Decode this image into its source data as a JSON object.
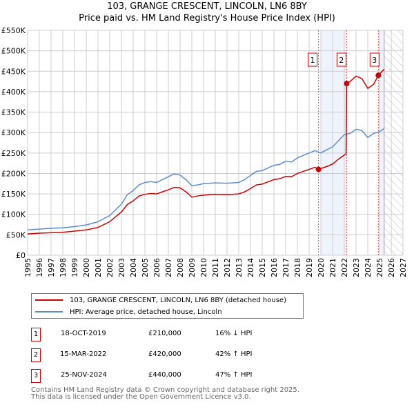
{
  "title": "103, GRANGE CRESCENT, LINCOLN, LN6 8BY",
  "subtitle": "Price paid vs. HM Land Registry's House Price Index (HPI)",
  "chart_data": {
    "type": "line",
    "title": "103, GRANGE CRESCENT, LINCOLN, LN6 8BY",
    "subtitle": "Price paid vs. HM Land Registry's House Price Index (HPI)",
    "xlim": [
      1995,
      2027
    ],
    "ylim": [
      0,
      550000
    ],
    "x_ticks": [
      "1995",
      "1996",
      "1997",
      "1998",
      "1999",
      "2000",
      "2001",
      "2002",
      "2003",
      "2004",
      "2005",
      "2006",
      "2007",
      "2008",
      "2009",
      "2010",
      "2011",
      "2012",
      "2013",
      "2014",
      "2015",
      "2016",
      "2017",
      "2018",
      "2019",
      "2020",
      "2021",
      "2022",
      "2023",
      "2024",
      "2025",
      "2026",
      "2027"
    ],
    "y_ticks": [
      "£0",
      "£50K",
      "£100K",
      "£150K",
      "£200K",
      "£250K",
      "£300K",
      "£350K",
      "£400K",
      "£450K",
      "£500K",
      "£550K"
    ],
    "grid": true,
    "series": [
      {
        "name": "103, GRANGE CRESCENT, LINCOLN, LN6 8BY (detached house)",
        "color": "#cc0000",
        "x": [
          1995,
          1996,
          1997,
          1998,
          1999,
          2000,
          2001,
          2002,
          2003,
          2003.5,
          2004,
          2004.5,
          2005,
          2005.5,
          2006,
          2006.5,
          2007,
          2007.5,
          2008,
          2008.5,
          2009,
          2009.5,
          2010,
          2011,
          2012,
          2013,
          2013.5,
          2014,
          2014.5,
          2015,
          2016,
          2016.5,
          2017,
          2017.5,
          2018,
          2019,
          2019.5,
          2019.8,
          2020.5,
          2021,
          2021.5,
          2022.15,
          2022.2,
          2022.5,
          2023,
          2023.5,
          2024,
          2024.5,
          2024.9,
          2025.4
        ],
        "y": [
          52000,
          54000,
          55000,
          56000,
          59000,
          62000,
          68000,
          82000,
          106000,
          124000,
          133000,
          145000,
          149000,
          151000,
          150000,
          155000,
          160000,
          166000,
          165000,
          155000,
          142000,
          145000,
          147000,
          149000,
          148000,
          150000,
          155000,
          163000,
          172000,
          174000,
          185000,
          187000,
          193000,
          192000,
          200000,
          210000,
          215000,
          210000,
          217000,
          223000,
          235000,
          248000,
          420000,
          425000,
          438000,
          432000,
          408000,
          418000,
          440000,
          455000
        ]
      },
      {
        "name": "HPI: Average price, detached house, Lincoln",
        "color": "#5b8ccc",
        "x": [
          1995,
          1996,
          1997,
          1998,
          1999,
          2000,
          2001,
          2002,
          2003,
          2003.5,
          2004,
          2004.5,
          2005,
          2005.5,
          2006,
          2006.5,
          2007,
          2007.5,
          2008,
          2008.5,
          2009,
          2009.5,
          2010,
          2011,
          2012,
          2013,
          2013.5,
          2014,
          2014.5,
          2015,
          2016,
          2016.5,
          2017,
          2017.5,
          2018,
          2019,
          2019.5,
          2020,
          2020.5,
          2021,
          2021.5,
          2022,
          2022.5,
          2023,
          2023.5,
          2024,
          2024.5,
          2025,
          2025.4
        ],
        "y": [
          62000,
          64000,
          66000,
          67000,
          70000,
          74000,
          82000,
          97000,
          125000,
          148000,
          158000,
          172000,
          178000,
          180000,
          178000,
          185000,
          192000,
          199000,
          196000,
          185000,
          170000,
          172000,
          175000,
          177000,
          176000,
          178000,
          185000,
          195000,
          205000,
          207000,
          220000,
          222000,
          230000,
          228000,
          238000,
          250000,
          256000,
          250000,
          258000,
          265000,
          280000,
          295000,
          298000,
          308000,
          305000,
          288000,
          298000,
          302000,
          310000
        ]
      }
    ],
    "sales": [
      {
        "label": "1",
        "x": 2019.8,
        "y": 210000,
        "date": "18-OCT-2019",
        "price": "£210,000",
        "hpi": "16% ↓ HPI"
      },
      {
        "label": "2",
        "x": 2022.2,
        "y": 420000,
        "date": "15-MAR-2022",
        "price": "£420,000",
        "hpi": "42% ↑ HPI"
      },
      {
        "label": "3",
        "x": 2024.9,
        "y": 440000,
        "date": "25-NOV-2024",
        "price": "£440,000",
        "hpi": "47% ↑ HPI"
      }
    ],
    "shaded_ranges": [
      [
        2020,
        2022.2
      ],
      [
        2024.9,
        2025.4
      ]
    ],
    "forecast_start": 2025.4,
    "legend_placement": "below"
  },
  "footer": [
    "Contains HM Land Registry data © Crown copyright and database right 2025.",
    "This data is licensed under the Open Government Licence v3.0."
  ]
}
